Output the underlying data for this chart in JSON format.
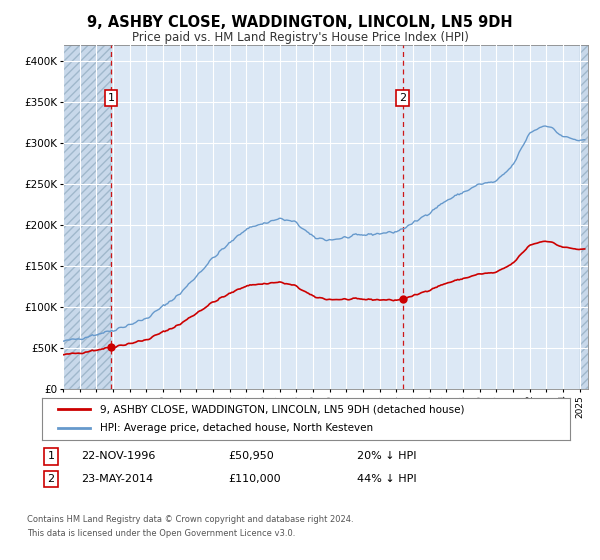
{
  "title": "9, ASHBY CLOSE, WADDINGTON, LINCOLN, LN5 9DH",
  "subtitle": "Price paid vs. HM Land Registry's House Price Index (HPI)",
  "legend_entry1": "9, ASHBY CLOSE, WADDINGTON, LINCOLN, LN5 9DH (detached house)",
  "legend_entry2": "HPI: Average price, detached house, North Kesteven",
  "annotation1_date": "22-NOV-1996",
  "annotation1_price": "£50,950",
  "annotation1_hpi": "20% ↓ HPI",
  "annotation2_date": "23-MAY-2014",
  "annotation2_price": "£110,000",
  "annotation2_hpi": "44% ↓ HPI",
  "footnote1": "Contains HM Land Registry data © Crown copyright and database right 2024.",
  "footnote2": "This data is licensed under the Open Government Licence v3.0.",
  "sale1_year": 1996.89,
  "sale1_value": 50950,
  "sale2_year": 2014.39,
  "sale2_value": 110000,
  "red_color": "#cc0000",
  "blue_color": "#6699cc",
  "background_color": "#dce8f5",
  "grid_color": "#ffffff",
  "ylim_max": 420000,
  "xmin": 1994.0,
  "xmax": 2025.5
}
